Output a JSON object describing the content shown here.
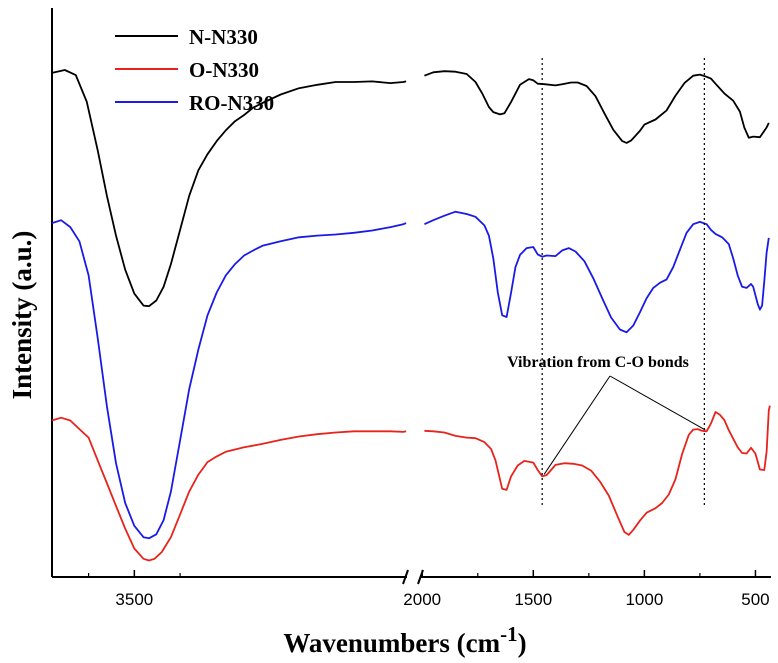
{
  "chart_data": {
    "type": "line",
    "title": "",
    "xlabel": "Wavenumbers (cm",
    "xlabel_sup": "-1",
    "xlabel_end": ")",
    "ylabel": "Intensity (a.u.)",
    "x_axis_reversed": true,
    "x_axis_broken": true,
    "x_segments": [
      {
        "from": 3950,
        "to": 2010
      },
      {
        "from": 2010,
        "to": 430
      }
    ],
    "x_ticks": [
      {
        "value": 3500,
        "label": "3500"
      },
      {
        "value": 2000,
        "label": "2000"
      },
      {
        "value": 1500,
        "label": "1500"
      },
      {
        "value": 1000,
        "label": "1000"
      },
      {
        "value": 500,
        "label": "500"
      }
    ],
    "y_ticks_shown": false,
    "ylim": [
      0,
      100
    ],
    "grid": false,
    "legend_position": "top-left",
    "colors": {
      "N-N330": "#000000",
      "O-N330": "#e8231c",
      "RO-N330": "#1a1ae8"
    },
    "series": [
      {
        "name": "N-N330",
        "color": "#000000",
        "segments": [
          [
            [
              3950,
              88.6
            ],
            [
              3880,
              89.1
            ],
            [
              3820,
              88.2
            ],
            [
              3760,
              83.5
            ],
            [
              3700,
              75.0
            ],
            [
              3650,
              67.0
            ],
            [
              3600,
              60.0
            ],
            [
              3550,
              54.0
            ],
            [
              3500,
              49.8
            ],
            [
              3450,
              47.7
            ],
            [
              3420,
              47.6
            ],
            [
              3380,
              48.6
            ],
            [
              3340,
              51.0
            ],
            [
              3300,
              55.0
            ],
            [
              3250,
              61.0
            ],
            [
              3200,
              67.0
            ],
            [
              3150,
              71.5
            ],
            [
              3100,
              74.3
            ],
            [
              3050,
              76.6
            ],
            [
              3000,
              78.5
            ],
            [
              2950,
              80.1
            ],
            [
              2900,
              81.2
            ],
            [
              2850,
              82.5
            ],
            [
              2800,
              83.3
            ],
            [
              2700,
              84.8
            ],
            [
              2600,
              85.9
            ],
            [
              2500,
              86.5
            ],
            [
              2400,
              87.0
            ],
            [
              2300,
              87.0
            ],
            [
              2200,
              87.1
            ],
            [
              2100,
              86.8
            ],
            [
              2030,
              87.0
            ],
            [
              2015,
              87.1
            ]
          ],
          [
            [
              1990,
              88.1
            ],
            [
              1950,
              88.7
            ],
            [
              1900,
              88.9
            ],
            [
              1850,
              88.8
            ],
            [
              1800,
              88.4
            ],
            [
              1760,
              87.0
            ],
            [
              1730,
              85.0
            ],
            [
              1700,
              82.6
            ],
            [
              1680,
              81.7
            ],
            [
              1650,
              81.3
            ],
            [
              1630,
              81.5
            ],
            [
              1600,
              83.5
            ],
            [
              1560,
              86.5
            ],
            [
              1520,
              87.5
            ],
            [
              1500,
              87.3
            ],
            [
              1480,
              86.7
            ],
            [
              1450,
              86.6
            ],
            [
              1400,
              86.4
            ],
            [
              1370,
              86.6
            ],
            [
              1330,
              86.9
            ],
            [
              1300,
              86.9
            ],
            [
              1260,
              86.3
            ],
            [
              1220,
              84.5
            ],
            [
              1180,
              81.5
            ],
            [
              1140,
              78.6
            ],
            [
              1100,
              76.6
            ],
            [
              1080,
              76.3
            ],
            [
              1060,
              76.7
            ],
            [
              1020,
              78.4
            ],
            [
              1000,
              79.5
            ],
            [
              950,
              80.4
            ],
            [
              900,
              82.0
            ],
            [
              860,
              84.6
            ],
            [
              820,
              86.8
            ],
            [
              780,
              88.1
            ],
            [
              750,
              88.3
            ],
            [
              720,
              87.9
            ],
            [
              700,
              87.6
            ],
            [
              680,
              86.7
            ],
            [
              640,
              85.0
            ],
            [
              600,
              83.7
            ],
            [
              570,
              81.8
            ],
            [
              550,
              79.0
            ],
            [
              530,
              77.2
            ],
            [
              510,
              77.4
            ],
            [
              480,
              77.3
            ],
            [
              450,
              79.0
            ],
            [
              440,
              79.8
            ]
          ]
        ]
      },
      {
        "name": "O-N330",
        "color": "#e8231c",
        "segments": [
          [
            [
              3950,
              27.5
            ],
            [
              3900,
              28.0
            ],
            [
              3850,
              27.5
            ],
            [
              3800,
              26.0
            ],
            [
              3750,
              24.5
            ],
            [
              3700,
              20.5
            ],
            [
              3650,
              16.5
            ],
            [
              3600,
              12.5
            ],
            [
              3550,
              8.5
            ],
            [
              3500,
              5.0
            ],
            [
              3450,
              3.2
            ],
            [
              3420,
              2.9
            ],
            [
              3390,
              3.2
            ],
            [
              3350,
              4.4
            ],
            [
              3300,
              7.0
            ],
            [
              3250,
              11.0
            ],
            [
              3200,
              15.0
            ],
            [
              3150,
              18.0
            ],
            [
              3100,
              20.2
            ],
            [
              3050,
              21.2
            ],
            [
              3000,
              22.0
            ],
            [
              2950,
              22.4
            ],
            [
              2900,
              22.8
            ],
            [
              2800,
              23.4
            ],
            [
              2700,
              24.1
            ],
            [
              2600,
              24.7
            ],
            [
              2500,
              25.1
            ],
            [
              2400,
              25.4
            ],
            [
              2300,
              25.6
            ],
            [
              2200,
              25.6
            ],
            [
              2100,
              25.6
            ],
            [
              2030,
              25.5
            ],
            [
              2015,
              25.6
            ]
          ],
          [
            [
              1990,
              25.7
            ],
            [
              1950,
              25.6
            ],
            [
              1900,
              25.4
            ],
            [
              1850,
              24.8
            ],
            [
              1800,
              24.5
            ],
            [
              1760,
              24.4
            ],
            [
              1720,
              23.7
            ],
            [
              1690,
              22.5
            ],
            [
              1670,
              20.5
            ],
            [
              1640,
              15.5
            ],
            [
              1620,
              15.3
            ],
            [
              1600,
              17.7
            ],
            [
              1570,
              19.6
            ],
            [
              1540,
              20.4
            ],
            [
              1500,
              20.1
            ],
            [
              1480,
              18.8
            ],
            [
              1460,
              17.7
            ],
            [
              1440,
              17.9
            ],
            [
              1400,
              19.7
            ],
            [
              1360,
              20.0
            ],
            [
              1320,
              19.9
            ],
            [
              1280,
              19.6
            ],
            [
              1240,
              18.7
            ],
            [
              1200,
              16.8
            ],
            [
              1160,
              14.3
            ],
            [
              1120,
              10.6
            ],
            [
              1090,
              7.9
            ],
            [
              1070,
              7.4
            ],
            [
              1050,
              8.3
            ],
            [
              1020,
              9.9
            ],
            [
              990,
              11.3
            ],
            [
              950,
              12.1
            ],
            [
              920,
              13.0
            ],
            [
              890,
              14.5
            ],
            [
              860,
              17.2
            ],
            [
              830,
              21.6
            ],
            [
              800,
              25.0
            ],
            [
              780,
              25.9
            ],
            [
              760,
              26.0
            ],
            [
              740,
              25.7
            ],
            [
              720,
              25.6
            ],
            [
              700,
              27.0
            ],
            [
              680,
              29.0
            ],
            [
              660,
              28.5
            ],
            [
              640,
              27.6
            ],
            [
              620,
              25.8
            ],
            [
              600,
              24.3
            ],
            [
              580,
              22.8
            ],
            [
              560,
              21.8
            ],
            [
              540,
              21.7
            ],
            [
              520,
              22.7
            ],
            [
              500,
              21.7
            ],
            [
              480,
              18.9
            ],
            [
              460,
              18.8
            ],
            [
              450,
              22.0
            ],
            [
              440,
              29.3
            ],
            [
              435,
              30.1
            ]
          ]
        ]
      },
      {
        "name": "RO-N330",
        "color": "#1a1ae8",
        "segments": [
          [
            [
              3950,
              62.2
            ],
            [
              3900,
              62.7
            ],
            [
              3850,
              61.5
            ],
            [
              3800,
              59.0
            ],
            [
              3750,
              53.0
            ],
            [
              3700,
              42.0
            ],
            [
              3650,
              30.0
            ],
            [
              3600,
              20.0
            ],
            [
              3550,
              13.0
            ],
            [
              3500,
              9.0
            ],
            [
              3450,
              7.0
            ],
            [
              3420,
              6.8
            ],
            [
              3380,
              7.5
            ],
            [
              3340,
              10.0
            ],
            [
              3300,
              15.0
            ],
            [
              3250,
              24.0
            ],
            [
              3200,
              33.0
            ],
            [
              3150,
              40.0
            ],
            [
              3100,
              46.0
            ],
            [
              3050,
              50.0
            ],
            [
              3000,
              53.0
            ],
            [
              2950,
              55.0
            ],
            [
              2900,
              56.5
            ],
            [
              2850,
              57.4
            ],
            [
              2800,
              58.2
            ],
            [
              2700,
              59.0
            ],
            [
              2600,
              59.7
            ],
            [
              2500,
              60.0
            ],
            [
              2400,
              60.2
            ],
            [
              2300,
              60.5
            ],
            [
              2200,
              60.9
            ],
            [
              2100,
              61.5
            ],
            [
              2030,
              62.0
            ],
            [
              2015,
              62.2
            ]
          ],
          [
            [
              1990,
              62.0
            ],
            [
              1950,
              62.7
            ],
            [
              1900,
              63.5
            ],
            [
              1850,
              64.2
            ],
            [
              1800,
              63.8
            ],
            [
              1760,
              63.3
            ],
            [
              1720,
              61.8
            ],
            [
              1700,
              60.0
            ],
            [
              1680,
              56.0
            ],
            [
              1660,
              50.0
            ],
            [
              1640,
              46.0
            ],
            [
              1620,
              45.7
            ],
            [
              1600,
              50.0
            ],
            [
              1580,
              54.5
            ],
            [
              1560,
              56.6
            ],
            [
              1530,
              57.8
            ],
            [
              1500,
              58.0
            ],
            [
              1480,
              56.7
            ],
            [
              1460,
              56.3
            ],
            [
              1440,
              56.5
            ],
            [
              1400,
              56.4
            ],
            [
              1370,
              57.4
            ],
            [
              1340,
              57.8
            ],
            [
              1310,
              57.2
            ],
            [
              1270,
              55.5
            ],
            [
              1230,
              52.5
            ],
            [
              1190,
              49.0
            ],
            [
              1150,
              45.6
            ],
            [
              1110,
              43.5
            ],
            [
              1080,
              43.0
            ],
            [
              1050,
              44.2
            ],
            [
              1020,
              46.5
            ],
            [
              990,
              49.0
            ],
            [
              960,
              50.8
            ],
            [
              930,
              51.7
            ],
            [
              900,
              52.3
            ],
            [
              870,
              54.5
            ],
            [
              840,
              57.5
            ],
            [
              810,
              60.5
            ],
            [
              780,
              62.0
            ],
            [
              750,
              62.4
            ],
            [
              720,
              62.0
            ],
            [
              700,
              61.0
            ],
            [
              680,
              60.3
            ],
            [
              650,
              59.7
            ],
            [
              620,
              58.5
            ],
            [
              600,
              56.0
            ],
            [
              580,
              53.0
            ],
            [
              560,
              51.0
            ],
            [
              540,
              50.8
            ],
            [
              520,
              51.5
            ],
            [
              510,
              51.0
            ],
            [
              490,
              48.0
            ],
            [
              480,
              47.0
            ],
            [
              470,
              47.7
            ],
            [
              460,
              52.0
            ],
            [
              450,
              57.0
            ],
            [
              440,
              59.6
            ]
          ]
        ]
      }
    ],
    "reference_lines": [
      {
        "x": 1460,
        "style": "dotted"
      },
      {
        "x": 730,
        "style": "dotted"
      }
    ],
    "annotation": {
      "text": "Vibration from C-O bonds",
      "targets": [
        {
          "x": 1460,
          "y": 17.7
        },
        {
          "x": 735,
          "y": 25.5
        }
      ]
    }
  }
}
